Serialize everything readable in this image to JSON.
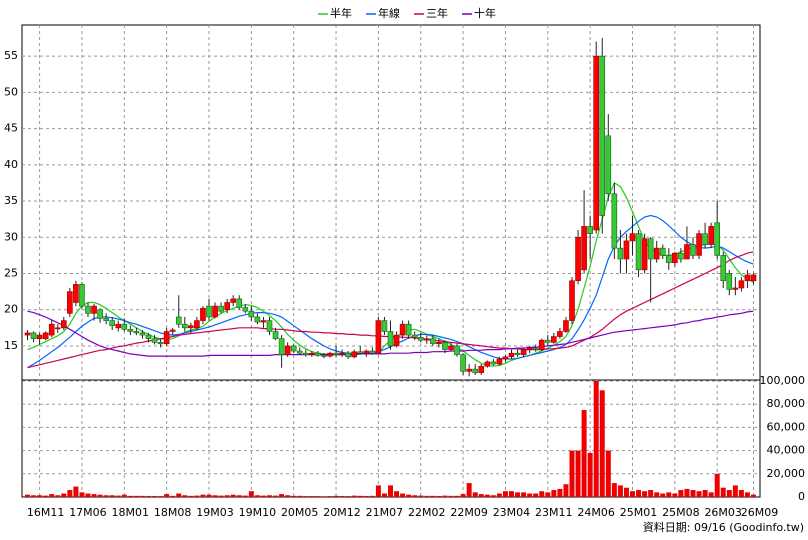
{
  "chart_data": {
    "type": "candlestick",
    "categories": [
      null,
      null,
      "16M11",
      null,
      null,
      null,
      null,
      null,
      null,
      "17M06",
      null,
      null,
      null,
      null,
      null,
      null,
      "18M01",
      null,
      null,
      null,
      null,
      null,
      null,
      "18M08",
      null,
      null,
      null,
      null,
      null,
      null,
      "19M03",
      null,
      null,
      null,
      null,
      null,
      null,
      "19M10",
      null,
      null,
      null,
      null,
      null,
      null,
      "20M05",
      null,
      null,
      null,
      null,
      null,
      null,
      "20M12",
      null,
      null,
      null,
      null,
      null,
      null,
      "21M07",
      null,
      null,
      null,
      null,
      null,
      null,
      "22M02",
      null,
      null,
      null,
      null,
      null,
      null,
      "22M09",
      null,
      null,
      null,
      null,
      null,
      null,
      "23M04",
      null,
      null,
      null,
      null,
      null,
      null,
      "23M11",
      null,
      null,
      null,
      null,
      null,
      null,
      "24M06",
      null,
      null,
      null,
      null,
      null,
      null,
      "25M01",
      null,
      null,
      null,
      null,
      null,
      null,
      "25M08",
      null,
      null,
      null,
      null,
      null,
      null,
      "26M03",
      null,
      null,
      null,
      null,
      null,
      "26M09"
    ],
    "open": [
      16.5,
      16.8,
      16.0,
      16.0,
      16.5,
      17.5,
      17.5,
      19.5,
      21.0,
      23.5,
      20.5,
      19.5,
      20.0,
      18.8,
      18.5,
      17.5,
      18.0,
      17.3,
      17.0,
      16.8,
      16.5,
      16.0,
      15.5,
      15.3,
      17.0,
      19.0,
      18.0,
      17.5,
      17.5,
      18.5,
      20.5,
      19.0,
      20.5,
      20.0,
      21.0,
      21.5,
      20.3,
      19.8,
      19.0,
      18.3,
      18.5,
      17.0,
      16.0,
      13.8,
      15.0,
      14.3,
      14.0,
      13.8,
      14.0,
      13.7,
      13.6,
      14.0,
      13.8,
      14.0,
      13.5,
      14.2,
      14.0,
      14.3,
      14.0,
      18.5,
      17.0,
      15.0,
      16.5,
      18.0,
      16.5,
      16.2,
      15.8,
      16.0,
      15.3,
      15.5,
      14.5,
      15.0,
      13.8,
      11.5,
      11.8,
      11.3,
      12.2,
      12.8,
      12.5,
      13.2,
      13.5,
      14.0,
      13.8,
      14.5,
      14.7,
      14.5,
      15.8,
      15.5,
      16.3,
      17.0,
      18.5,
      24.0,
      25.5,
      31.5,
      31.0,
      55.0,
      44.0,
      36.0,
      28.5,
      27.0,
      29.5,
      30.5,
      25.5,
      29.8,
      27.0,
      28.5,
      27.5,
      26.5,
      27.8,
      27.0,
      29.0,
      27.5,
      30.5,
      29.0,
      32.0,
      27.5,
      25.0,
      22.8,
      23.0,
      24.0,
      24.0
    ],
    "high": [
      17.2,
      17.0,
      16.8,
      17.0,
      18.5,
      18.0,
      19.0,
      23.0,
      24.0,
      23.8,
      21.0,
      20.8,
      20.2,
      19.5,
      19.0,
      18.5,
      18.8,
      17.8,
      17.5,
      17.2,
      16.8,
      16.5,
      16.0,
      17.5,
      17.5,
      22.0,
      19.0,
      18.2,
      19.0,
      20.5,
      21.5,
      21.0,
      21.0,
      21.5,
      22.0,
      22.0,
      20.8,
      20.5,
      19.5,
      19.0,
      19.0,
      17.5,
      16.5,
      15.5,
      15.2,
      14.8,
      14.5,
      14.3,
      14.3,
      14.0,
      14.2,
      15.0,
      14.5,
      14.3,
      14.5,
      15.0,
      14.5,
      14.8,
      19.0,
      19.0,
      18.5,
      17.0,
      18.5,
      18.5,
      17.0,
      16.8,
      16.5,
      16.5,
      16.0,
      15.8,
      15.5,
      15.3,
      14.0,
      12.5,
      12.5,
      12.5,
      13.0,
      13.2,
      13.5,
      13.8,
      14.5,
      14.5,
      14.8,
      15.0,
      15.2,
      16.0,
      16.5,
      16.8,
      17.5,
      19.0,
      24.5,
      31.0,
      36.5,
      33.0,
      57.0,
      57.5,
      47.0,
      37.5,
      31.0,
      30.5,
      33.0,
      31.0,
      30.5,
      30.0,
      29.5,
      29.0,
      28.5,
      28.0,
      28.5,
      31.5,
      30.0,
      31.0,
      32.0,
      32.0,
      35.0,
      28.0,
      25.5,
      24.5,
      24.5,
      25.5,
      25.0
    ],
    "low": [
      15.8,
      15.5,
      15.2,
      15.8,
      16.2,
      16.8,
      17.2,
      19.0,
      20.5,
      20.2,
      19.0,
      18.5,
      18.2,
      18.0,
      17.2,
      17.0,
      17.0,
      16.5,
      16.5,
      16.0,
      15.5,
      15.2,
      14.8,
      15.0,
      16.5,
      17.5,
      17.0,
      16.8,
      17.2,
      18.0,
      18.5,
      18.8,
      19.5,
      19.5,
      20.5,
      20.0,
      19.5,
      18.5,
      18.0,
      17.5,
      16.5,
      15.8,
      12.0,
      13.5,
      14.0,
      13.8,
      13.5,
      13.5,
      13.5,
      13.3,
      13.4,
      13.5,
      13.5,
      13.2,
      13.3,
      13.8,
      13.5,
      13.8,
      14.0,
      16.5,
      14.5,
      14.8,
      16.0,
      16.0,
      15.8,
      15.5,
      15.3,
      15.0,
      14.8,
      14.0,
      14.3,
      13.5,
      11.0,
      10.8,
      11.0,
      11.0,
      12.0,
      12.3,
      12.3,
      12.8,
      13.2,
      13.5,
      13.5,
      14.0,
      14.2,
      14.3,
      15.0,
      15.3,
      16.0,
      16.8,
      18.0,
      23.5,
      25.0,
      27.0,
      30.5,
      30.5,
      35.0,
      27.0,
      25.0,
      25.0,
      27.5,
      24.5,
      25.0,
      21.0,
      26.5,
      27.0,
      25.5,
      26.0,
      26.5,
      27.0,
      27.0,
      27.0,
      28.5,
      28.5,
      27.0,
      23.0,
      22.0,
      22.0,
      22.5,
      23.0,
      23.5
    ],
    "close": [
      16.8,
      16.0,
      16.5,
      16.8,
      18.0,
      17.5,
      18.5,
      22.5,
      23.5,
      20.5,
      19.5,
      20.5,
      18.8,
      18.5,
      17.8,
      18.0,
      17.3,
      17.0,
      16.8,
      16.5,
      16.0,
      15.5,
      15.3,
      17.0,
      17.2,
      18.0,
      17.5,
      17.8,
      18.5,
      20.2,
      19.0,
      20.5,
      19.8,
      21.0,
      21.5,
      20.3,
      19.8,
      19.0,
      18.3,
      18.5,
      17.0,
      16.0,
      13.8,
      15.0,
      14.3,
      14.0,
      13.8,
      14.0,
      13.7,
      13.6,
      14.0,
      13.8,
      14.0,
      13.5,
      14.2,
      14.0,
      14.3,
      14.0,
      18.5,
      17.0,
      15.0,
      16.5,
      18.0,
      16.5,
      16.2,
      15.8,
      16.0,
      15.3,
      15.5,
      14.5,
      15.0,
      13.8,
      11.5,
      11.8,
      11.3,
      12.2,
      12.8,
      12.5,
      13.2,
      13.5,
      14.0,
      13.8,
      14.5,
      14.7,
      14.5,
      15.8,
      15.5,
      16.3,
      17.0,
      18.5,
      24.0,
      30.0,
      31.5,
      30.5,
      55.0,
      33.0,
      36.0,
      28.5,
      27.0,
      29.5,
      30.5,
      25.5,
      29.8,
      27.0,
      28.5,
      27.5,
      26.5,
      27.8,
      27.0,
      29.0,
      27.5,
      30.5,
      29.0,
      31.5,
      27.5,
      24.0,
      22.8,
      23.0,
      24.0,
      24.8,
      24.8
    ],
    "up_color": "#ff0000",
    "down_color": "#33cc33",
    "ylim": [
      10.3,
      59.3
    ],
    "yticks": [
      15,
      20,
      25,
      30,
      35,
      40,
      45,
      50,
      55
    ],
    "grid": true,
    "legend": "top",
    "series": [
      {
        "name": "半年",
        "color": "#22cc22",
        "values": [
          14.5,
          14.8,
          15.2,
          15.6,
          16.0,
          16.4,
          17.0,
          18.0,
          19.5,
          20.5,
          21.0,
          21.0,
          20.7,
          20.2,
          19.6,
          19.0,
          18.5,
          18.0,
          17.5,
          17.0,
          16.6,
          16.2,
          16.0,
          15.9,
          16.0,
          16.4,
          16.9,
          17.2,
          17.4,
          17.7,
          18.4,
          19.0,
          19.5,
          19.9,
          20.2,
          20.5,
          20.7,
          20.6,
          20.3,
          19.8,
          19.2,
          18.5,
          17.6,
          16.6,
          15.8,
          15.1,
          14.6,
          14.2,
          14.0,
          13.9,
          13.8,
          13.8,
          13.8,
          13.8,
          13.8,
          13.9,
          13.9,
          14.0,
          14.0,
          15.0,
          15.8,
          16.3,
          16.8,
          17.2,
          17.3,
          17.0,
          16.6,
          16.3,
          16.0,
          15.6,
          15.2,
          14.8,
          14.3,
          13.7,
          13.1,
          12.6,
          12.3,
          12.2,
          12.3,
          12.6,
          13.0,
          13.3,
          13.5,
          13.7,
          14.0,
          14.3,
          14.7,
          15.1,
          15.6,
          16.3,
          17.8,
          20.0,
          23.0,
          26.0,
          29.5,
          32.5,
          35.5,
          37.5,
          37.0,
          35.5,
          33.5,
          31.5,
          29.5,
          28.5,
          27.8,
          27.5,
          27.5,
          27.7,
          28.0,
          28.3,
          28.6,
          28.8,
          29.0,
          29.1,
          29.0,
          28.2,
          27.0,
          25.8,
          24.8,
          24.2,
          23.8
        ]
      },
      {
        "name": "年線",
        "color": "#0066ff",
        "values": [
          12.0,
          12.5,
          13.0,
          13.6,
          14.2,
          14.8,
          15.5,
          16.2,
          17.0,
          17.7,
          18.3,
          18.8,
          19.0,
          19.0,
          18.9,
          18.7,
          18.5,
          18.2,
          18.0,
          17.7,
          17.4,
          17.1,
          16.8,
          16.6,
          16.5,
          16.6,
          16.8,
          17.0,
          17.2,
          17.4,
          17.6,
          17.9,
          18.2,
          18.5,
          18.8,
          19.1,
          19.3,
          19.5,
          19.6,
          19.6,
          19.5,
          19.3,
          19.0,
          18.4,
          17.8,
          17.2,
          16.6,
          16.0,
          15.5,
          15.0,
          14.6,
          14.3,
          14.1,
          14.0,
          14.0,
          14.0,
          14.0,
          14.1,
          14.2,
          14.5,
          14.9,
          15.3,
          15.7,
          16.1,
          16.4,
          16.6,
          16.6,
          16.5,
          16.3,
          16.1,
          15.9,
          15.6,
          15.3,
          14.9,
          14.5,
          14.1,
          13.8,
          13.5,
          13.3,
          13.2,
          13.2,
          13.3,
          13.5,
          13.7,
          13.9,
          14.1,
          14.3,
          14.5,
          14.8,
          15.2,
          16.0,
          17.2,
          18.6,
          20.2,
          22.0,
          24.5,
          27.0,
          28.8,
          30.0,
          30.8,
          31.5,
          32.2,
          32.8,
          33.0,
          32.8,
          32.3,
          31.6,
          30.8,
          30.0,
          29.4,
          28.9,
          28.6,
          28.5,
          28.6,
          28.8,
          28.5,
          28.0,
          27.5,
          27.0,
          26.6,
          26.3
        ]
      },
      {
        "name": "三年",
        "color": "#cc0055",
        "values": [
          12.0,
          12.2,
          12.4,
          12.6,
          12.8,
          13.0,
          13.2,
          13.4,
          13.6,
          13.8,
          14.0,
          14.2,
          14.4,
          14.5,
          14.7,
          14.9,
          15.0,
          15.2,
          15.4,
          15.5,
          15.7,
          15.8,
          16.0,
          16.1,
          16.3,
          16.5,
          16.6,
          16.7,
          16.8,
          16.9,
          17.0,
          17.1,
          17.2,
          17.3,
          17.4,
          17.5,
          17.5,
          17.5,
          17.5,
          17.4,
          17.4,
          17.3,
          17.3,
          17.2,
          17.1,
          17.0,
          17.0,
          16.9,
          16.9,
          16.8,
          16.8,
          16.7,
          16.7,
          16.6,
          16.6,
          16.5,
          16.5,
          16.4,
          16.4,
          16.3,
          16.3,
          16.3,
          16.2,
          16.2,
          16.1,
          16.0,
          15.9,
          15.8,
          15.7,
          15.6,
          15.5,
          15.4,
          15.3,
          15.2,
          15.1,
          15.0,
          14.9,
          14.8,
          14.7,
          14.7,
          14.6,
          14.6,
          14.5,
          14.5,
          14.5,
          14.5,
          14.6,
          14.6,
          14.7,
          14.8,
          15.0,
          15.4,
          15.8,
          16.2,
          16.7,
          17.3,
          18.0,
          18.7,
          19.3,
          19.8,
          20.2,
          20.6,
          21.0,
          21.4,
          21.8,
          22.2,
          22.6,
          23.0,
          23.4,
          23.8,
          24.2,
          24.6,
          25.0,
          25.4,
          25.8,
          26.3,
          26.8,
          27.2,
          27.5,
          27.8,
          28.0
        ]
      },
      {
        "name": "十年",
        "color": "#7a00c0",
        "values": [
          19.8,
          19.6,
          19.3,
          19.0,
          18.6,
          18.2,
          17.8,
          17.3,
          16.8,
          16.3,
          15.8,
          15.4,
          15.0,
          14.7,
          14.5,
          14.3,
          14.1,
          13.9,
          13.8,
          13.7,
          13.6,
          13.6,
          13.6,
          13.6,
          13.6,
          13.6,
          13.6,
          13.6,
          13.6,
          13.6,
          13.7,
          13.7,
          13.7,
          13.7,
          13.7,
          13.7,
          13.7,
          13.7,
          13.7,
          13.7,
          13.7,
          13.8,
          13.8,
          13.8,
          13.8,
          13.8,
          13.8,
          13.8,
          13.8,
          13.8,
          13.8,
          13.8,
          13.8,
          13.8,
          13.8,
          13.9,
          13.9,
          13.9,
          13.9,
          13.9,
          14.0,
          14.0,
          14.0,
          14.0,
          14.1,
          14.1,
          14.1,
          14.2,
          14.2,
          14.2,
          14.3,
          14.3,
          14.3,
          14.4,
          14.4,
          14.4,
          14.5,
          14.5,
          14.5,
          14.6,
          14.6,
          14.7,
          14.7,
          14.8,
          14.8,
          14.9,
          15.0,
          15.1,
          15.2,
          15.3,
          15.5,
          15.7,
          15.9,
          16.1,
          16.3,
          16.5,
          16.7,
          16.9,
          17.0,
          17.1,
          17.2,
          17.3,
          17.4,
          17.5,
          17.6,
          17.7,
          17.8,
          17.9,
          18.1,
          18.2,
          18.4,
          18.5,
          18.7,
          18.8,
          19.0,
          19.1,
          19.3,
          19.4,
          19.5,
          19.7,
          19.8
        ]
      }
    ],
    "volume": {
      "color": "#ee0000",
      "values": [
        2000,
        1500,
        1500,
        1200,
        2500,
        1500,
        3000,
        6000,
        9000,
        4000,
        3000,
        2500,
        2000,
        1500,
        1500,
        1200,
        2000,
        1000,
        1000,
        1000,
        900,
        900,
        800,
        2500,
        1000,
        3000,
        1500,
        1000,
        1200,
        2000,
        2000,
        1500,
        1200,
        1500,
        2000,
        1500,
        1200,
        5000,
        1500,
        1200,
        1500,
        1200,
        2500,
        1500,
        1000,
        1000,
        800,
        800,
        800,
        700,
        800,
        1000,
        900,
        800,
        1200,
        1000,
        900,
        1000,
        10000,
        3000,
        10000,
        5000,
        3000,
        2000,
        1500,
        1200,
        1000,
        1000,
        900,
        1200,
        1000,
        1000,
        2500,
        12000,
        4000,
        2500,
        2000,
        1500,
        3000,
        5000,
        5000,
        4000,
        4000,
        3000,
        3000,
        5000,
        4000,
        6000,
        7000,
        11000,
        40000,
        40000,
        75000,
        38000,
        100000,
        92000,
        40000,
        12000,
        10000,
        8000,
        5000,
        6000,
        5000,
        6000,
        4000,
        3000,
        4000,
        3000,
        6000,
        7000,
        6000,
        5000,
        6000,
        4000,
        20000,
        8000,
        6000,
        10000,
        6000,
        4000,
        2000
      ],
      "ylim": [
        0,
        100000
      ],
      "yticks": [
        0,
        {
          "value": 20000,
          "label": "20,000"
        },
        {
          "value": 40000,
          "label": "40,000"
        },
        {
          "value": 60000,
          "label": "60,000"
        },
        {
          "value": 80000,
          "label": "80,000"
        },
        {
          "value": 100000,
          "label": "100,000"
        }
      ]
    },
    "footnote": "資料日期: 09/16  (Goodinfo.tw)"
  }
}
